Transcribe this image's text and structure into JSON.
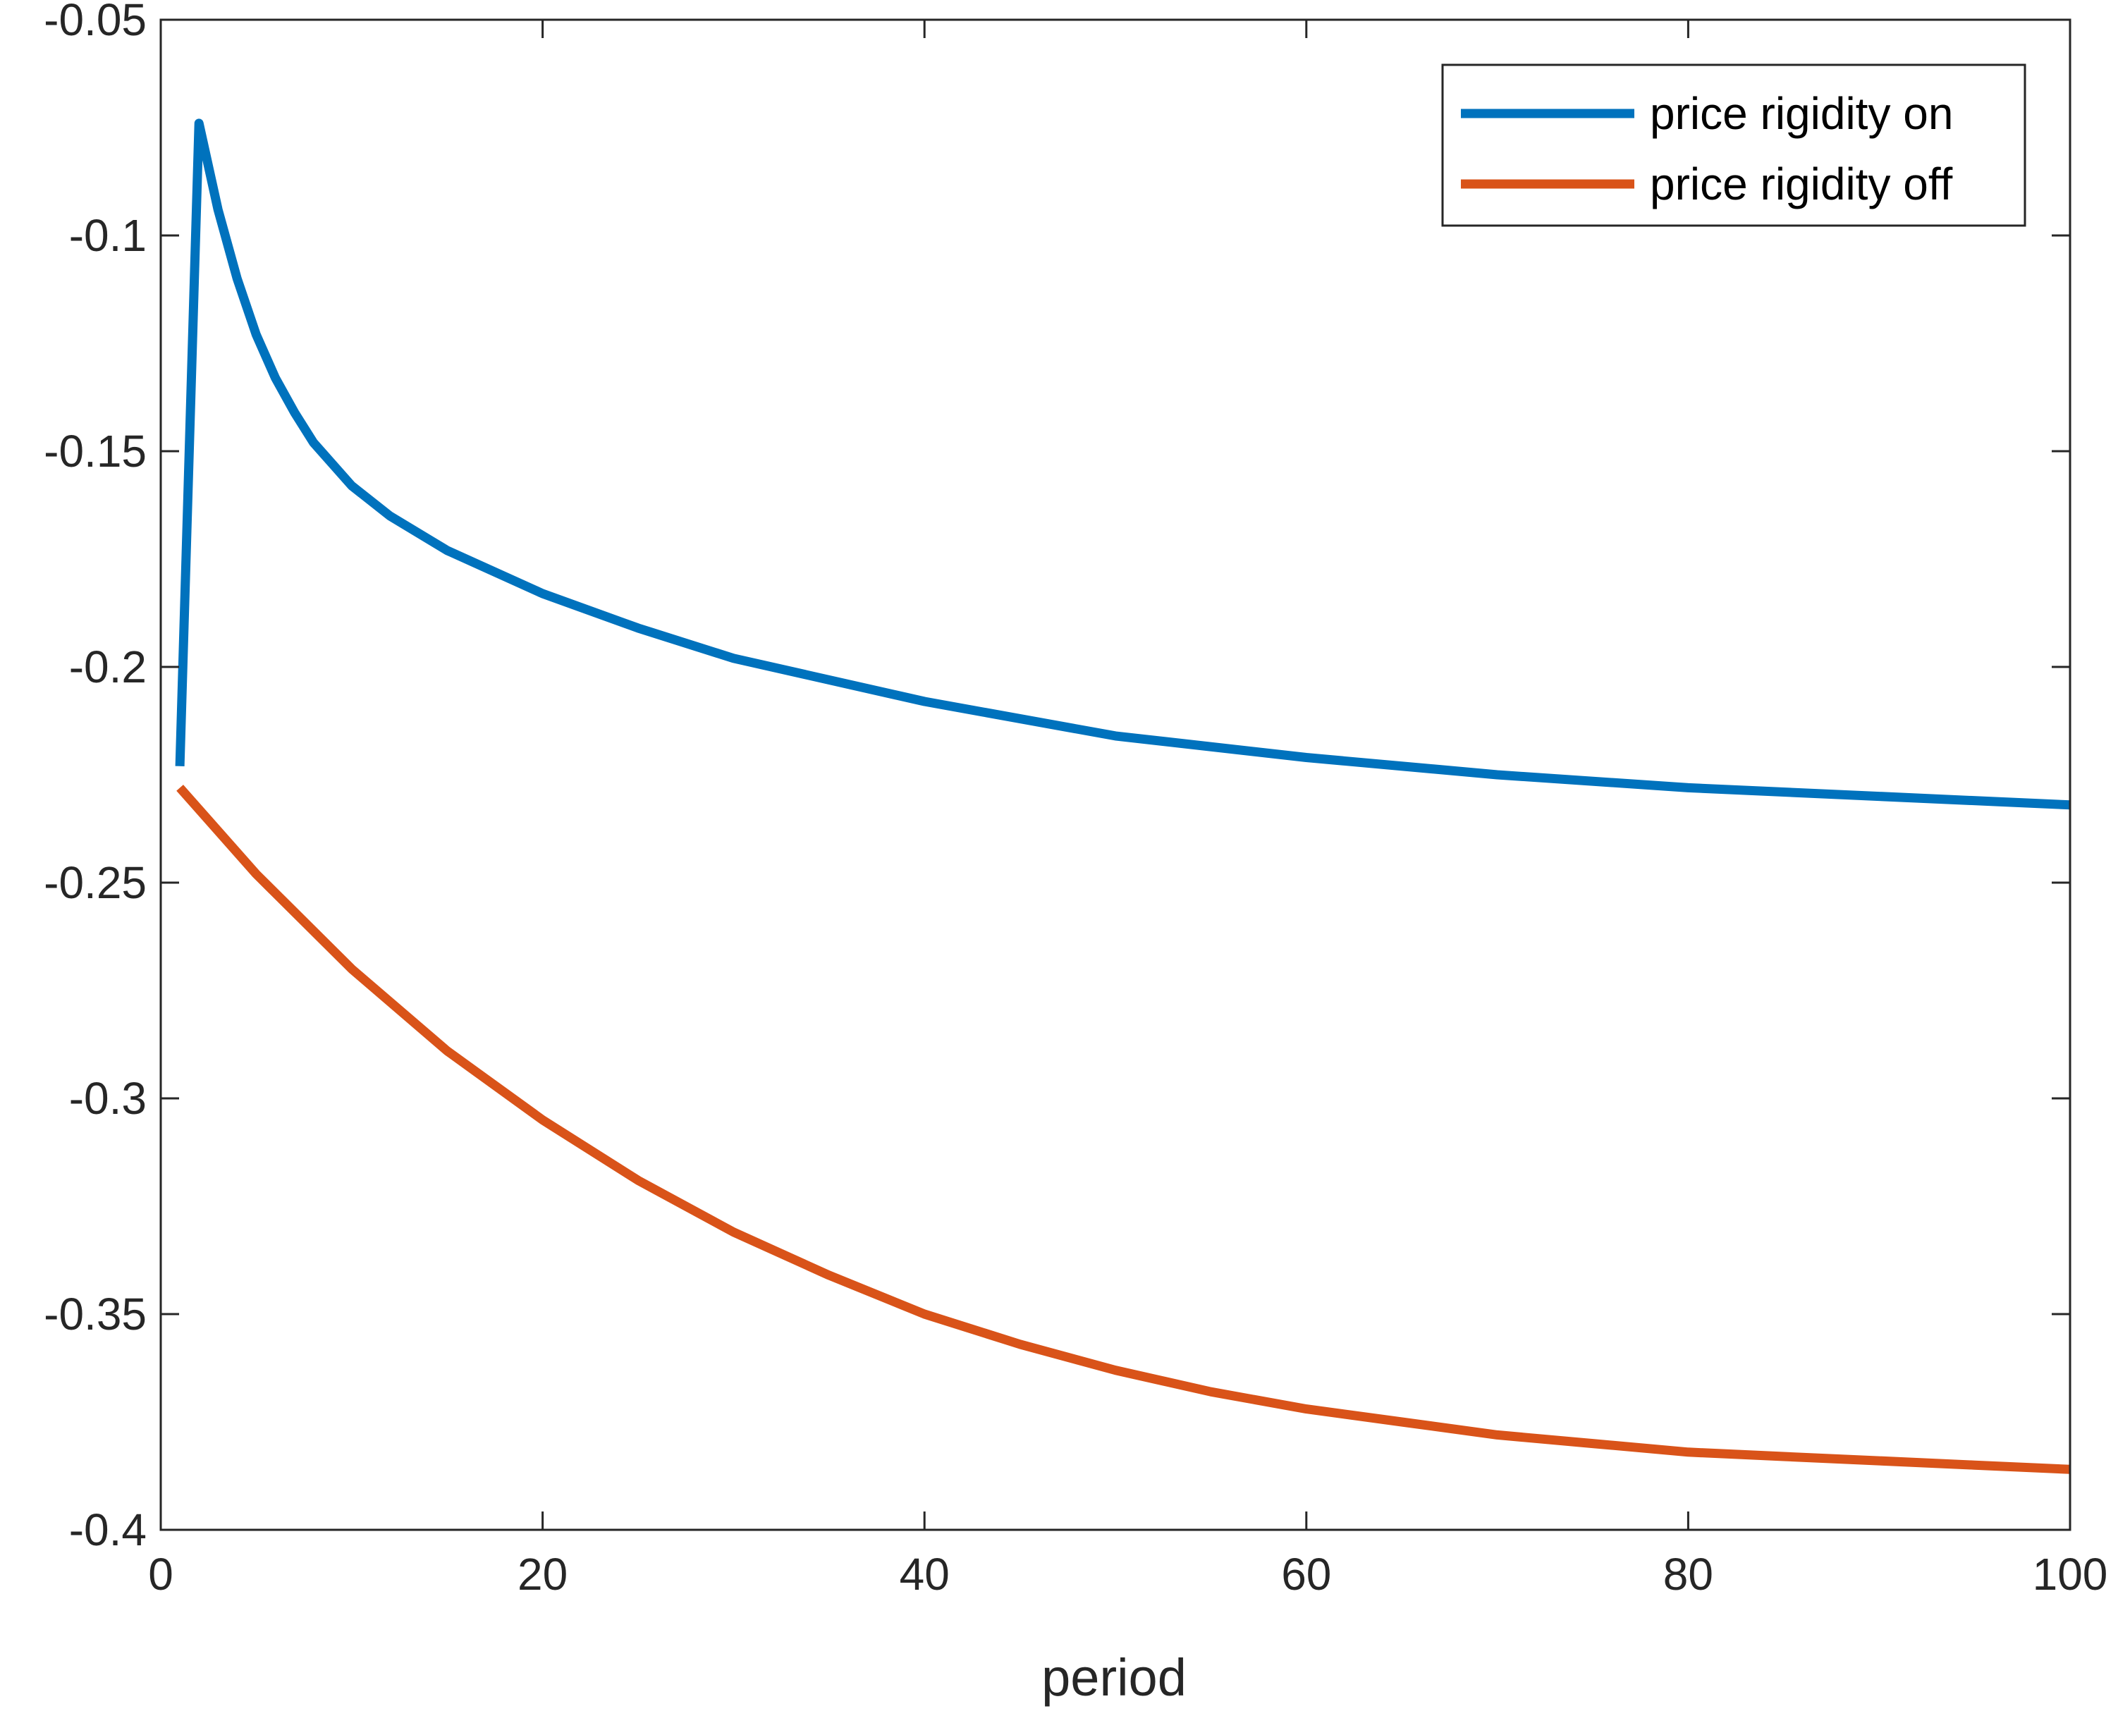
{
  "chart_data": {
    "type": "line",
    "title": "",
    "xlabel": "period",
    "ylabel": "",
    "xlim": [
      0,
      100
    ],
    "ylim": [
      -0.4,
      -0.05
    ],
    "xticks": [
      0,
      20,
      40,
      60,
      80,
      100
    ],
    "xtick_labels": [
      "0",
      "20",
      "40",
      "60",
      "80",
      "100"
    ],
    "yticks": [
      -0.05,
      -0.1,
      -0.15,
      -0.2,
      -0.25,
      -0.3,
      -0.35,
      -0.4
    ],
    "ytick_labels": [
      "-0.05",
      "-0.1",
      "-0.15",
      "-0.2",
      "-0.25",
      "-0.3",
      "-0.35",
      "-0.4"
    ],
    "grid": false,
    "legend_position": "top-right",
    "series": [
      {
        "name": "price rigidity on",
        "color": "#0072BD",
        "x": [
          1,
          2,
          3,
          4,
          5,
          6,
          7,
          8,
          10,
          12,
          15,
          20,
          25,
          30,
          40,
          50,
          60,
          70,
          80,
          90,
          100
        ],
        "y": [
          -0.223,
          -0.074,
          -0.094,
          -0.11,
          -0.123,
          -0.133,
          -0.141,
          -0.148,
          -0.158,
          -0.165,
          -0.173,
          -0.183,
          -0.191,
          -0.198,
          -0.208,
          -0.216,
          -0.221,
          -0.225,
          -0.228,
          -0.23,
          -0.232
        ]
      },
      {
        "name": "price rigidity off",
        "color": "#D95319",
        "x": [
          1,
          5,
          10,
          15,
          20,
          25,
          30,
          35,
          40,
          45,
          50,
          55,
          60,
          65,
          70,
          75,
          80,
          85,
          90,
          95,
          100
        ],
        "y": [
          -0.228,
          -0.248,
          -0.27,
          -0.289,
          -0.305,
          -0.319,
          -0.331,
          -0.341,
          -0.35,
          -0.357,
          -0.363,
          -0.368,
          -0.372,
          -0.375,
          -0.378,
          -0.38,
          -0.382,
          -0.383,
          -0.384,
          -0.385,
          -0.386
        ]
      }
    ]
  }
}
